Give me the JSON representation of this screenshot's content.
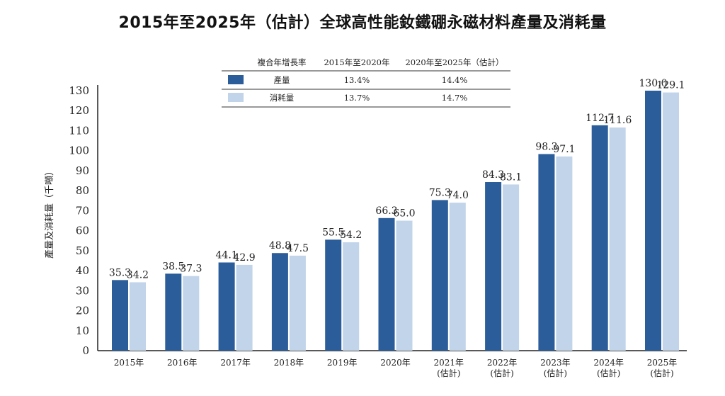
{
  "chart_data": {
    "type": "bar",
    "title": "2015年至2025年（估計）全球高性能釹鐵硼永磁材料產量及消耗量",
    "ylabel": "產量及消耗量（千噸）",
    "xlabel": "",
    "ylim": [
      0,
      130
    ],
    "yticks": [
      0,
      10,
      20,
      30,
      40,
      50,
      60,
      70,
      80,
      90,
      100,
      110,
      120,
      130
    ],
    "grid": false,
    "categories": [
      [
        "2015年"
      ],
      [
        "2016年"
      ],
      [
        "2017年"
      ],
      [
        "2018年"
      ],
      [
        "2019年"
      ],
      [
        "2020年"
      ],
      [
        "2021年",
        "(估計)"
      ],
      [
        "2022年",
        "(估計)"
      ],
      [
        "2023年",
        "(估計)"
      ],
      [
        "2024年",
        "(估計)"
      ],
      [
        "2025年",
        "(估計)"
      ]
    ],
    "series": [
      {
        "name": "產量",
        "color": "#2a5d99",
        "values": [
          35.3,
          38.5,
          44.1,
          48.8,
          55.5,
          66.3,
          75.3,
          84.3,
          98.3,
          112.7,
          130.0
        ],
        "labels": [
          "35.3",
          "38.5",
          "44.1",
          "48.8",
          "55.5",
          "66.3",
          "75.3",
          "84.3",
          "98.3",
          "112.7",
          "130.0"
        ]
      },
      {
        "name": "消耗量",
        "color": "#c2d4ea",
        "values": [
          34.2,
          37.3,
          42.9,
          47.5,
          54.2,
          65.0,
          74.0,
          83.1,
          97.1,
          111.6,
          129.1
        ],
        "labels": [
          "34.2",
          "37.3",
          "42.9",
          "47.5",
          "54.2",
          "65.0",
          "74.0",
          "83.1",
          "97.1",
          "111.6",
          "129.1"
        ]
      }
    ],
    "legend_table": {
      "header": [
        "複合年增長率",
        "2015年至2020年",
        "2020年至2025年（估計）"
      ],
      "rows": [
        {
          "series": "產量",
          "values": [
            "13.4%",
            "14.4%"
          ]
        },
        {
          "series": "消耗量",
          "values": [
            "13.7%",
            "14.7%"
          ]
        }
      ],
      "placement": "top-center"
    }
  }
}
